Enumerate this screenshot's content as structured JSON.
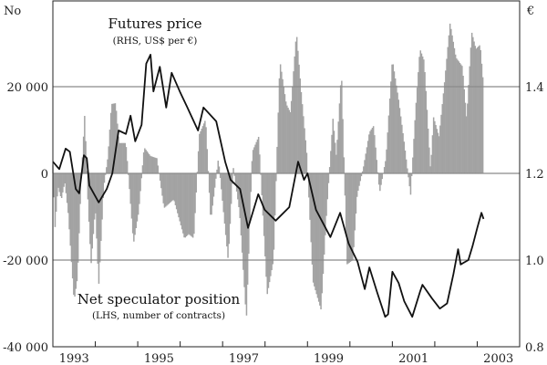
{
  "chart_data": {
    "type": "bar+line",
    "left_axis": {
      "unit_label": "No",
      "ylim": [
        -40000,
        40000
      ],
      "ticks": [
        20000,
        0,
        -20000,
        -40000
      ],
      "tick_labels": [
        "20 000",
        "0",
        "-20 000",
        "-40 000"
      ]
    },
    "right_axis": {
      "unit_label": "€",
      "ylim": [
        0.8,
        1.6
      ],
      "ticks": [
        1.4,
        1.2,
        1.0,
        0.8
      ],
      "tick_labels": [
        "1.4",
        "1.2",
        "1.0",
        "0.8"
      ]
    },
    "x_axis": {
      "xlim": [
        1993,
        2004
      ],
      "tick_labels": [
        "1993",
        "1995",
        "1997",
        "1999",
        "2001",
        "2003"
      ],
      "tick_label_years": [
        1993,
        1995,
        1997,
        1999,
        2001,
        2003
      ]
    },
    "grid": true,
    "series": [
      {
        "name": "Net speculator position",
        "sub": "(LHS, number of contracts)",
        "axis": "left",
        "kind": "bar",
        "color": "#a3a3a3",
        "points": [
          [
            1993.0,
            2000
          ],
          [
            1993.05,
            -12600
          ],
          [
            1993.12,
            -3000
          ],
          [
            1993.2,
            -6000
          ],
          [
            1993.28,
            -2000
          ],
          [
            1993.36,
            -9000
          ],
          [
            1993.5,
            -29500
          ],
          [
            1993.58,
            -24000
          ],
          [
            1993.66,
            -3000
          ],
          [
            1993.75,
            13700
          ],
          [
            1993.82,
            -5000
          ],
          [
            1993.9,
            -21000
          ],
          [
            1994.0,
            -8000
          ],
          [
            1994.08,
            -26000
          ],
          [
            1994.2,
            -3000
          ],
          [
            1994.3,
            4000
          ],
          [
            1994.38,
            16000
          ],
          [
            1994.48,
            16200
          ],
          [
            1994.56,
            7000
          ],
          [
            1994.72,
            7000
          ],
          [
            1994.8,
            -3000
          ],
          [
            1994.9,
            -16200
          ],
          [
            1995.02,
            -9000
          ],
          [
            1995.15,
            6000
          ],
          [
            1995.3,
            4000
          ],
          [
            1995.45,
            3500
          ],
          [
            1995.62,
            -8000
          ],
          [
            1995.85,
            -6000
          ],
          [
            1996.1,
            -15000
          ],
          [
            1996.2,
            -14000
          ],
          [
            1996.32,
            -15000
          ],
          [
            1996.45,
            9000
          ],
          [
            1996.6,
            12500
          ],
          [
            1996.72,
            -11000
          ],
          [
            1996.9,
            3500
          ],
          [
            1997.13,
            -20000
          ],
          [
            1997.25,
            1500
          ],
          [
            1997.4,
            -9000
          ],
          [
            1997.56,
            -33700
          ],
          [
            1997.7,
            5000
          ],
          [
            1997.85,
            8500
          ],
          [
            1998.05,
            -28000
          ],
          [
            1998.2,
            -20000
          ],
          [
            1998.35,
            26000
          ],
          [
            1998.5,
            16000
          ],
          [
            1998.6,
            14000
          ],
          [
            1998.74,
            32600
          ],
          [
            1998.85,
            19000
          ],
          [
            1998.98,
            5000
          ],
          [
            1999.13,
            -25000
          ],
          [
            1999.32,
            -31500
          ],
          [
            1999.45,
            -9000
          ],
          [
            1999.6,
            12600
          ],
          [
            1999.68,
            4000
          ],
          [
            1999.8,
            23500
          ],
          [
            1999.93,
            -21000
          ],
          [
            2000.07,
            -20000
          ],
          [
            2000.17,
            -5000
          ],
          [
            2000.32,
            1500
          ],
          [
            2000.46,
            9500
          ],
          [
            2000.56,
            11000
          ],
          [
            2000.7,
            -4500
          ],
          [
            2000.85,
            3500
          ],
          [
            2001.0,
            26300
          ],
          [
            2001.15,
            16800
          ],
          [
            2001.28,
            7000
          ],
          [
            2001.43,
            -5000
          ],
          [
            2001.55,
            15000
          ],
          [
            2001.65,
            28700
          ],
          [
            2001.75,
            26000
          ],
          [
            2001.9,
            700
          ],
          [
            2001.97,
            13000
          ],
          [
            2002.1,
            8500
          ],
          [
            2002.22,
            20000
          ],
          [
            2002.36,
            34700
          ],
          [
            2002.5,
            26700
          ],
          [
            2002.65,
            24700
          ],
          [
            2002.75,
            12600
          ],
          [
            2002.87,
            32600
          ],
          [
            2002.97,
            28700
          ],
          [
            2003.07,
            29700
          ],
          [
            2003.15,
            20000
          ]
        ]
      },
      {
        "name": "Futures price",
        "sub": "(RHS, US$ per €)",
        "axis": "right",
        "kind": "line",
        "color": "#111111",
        "points": [
          [
            1993.0,
            1.227
          ],
          [
            1993.15,
            1.21
          ],
          [
            1993.3,
            1.257
          ],
          [
            1993.4,
            1.25
          ],
          [
            1993.54,
            1.164
          ],
          [
            1993.62,
            1.154
          ],
          [
            1993.73,
            1.242
          ],
          [
            1993.8,
            1.235
          ],
          [
            1993.86,
            1.172
          ],
          [
            1994.08,
            1.133
          ],
          [
            1994.27,
            1.164
          ],
          [
            1994.4,
            1.2
          ],
          [
            1994.55,
            1.299
          ],
          [
            1994.72,
            1.291
          ],
          [
            1994.83,
            1.333
          ],
          [
            1994.94,
            1.274
          ],
          [
            1995.09,
            1.312
          ],
          [
            1995.2,
            1.453
          ],
          [
            1995.3,
            1.474
          ],
          [
            1995.37,
            1.389
          ],
          [
            1995.52,
            1.446
          ],
          [
            1995.67,
            1.352
          ],
          [
            1995.8,
            1.432
          ],
          [
            1995.99,
            1.389
          ],
          [
            1996.16,
            1.354
          ],
          [
            1996.42,
            1.299
          ],
          [
            1996.55,
            1.352
          ],
          [
            1996.85,
            1.32
          ],
          [
            1997.06,
            1.227
          ],
          [
            1997.19,
            1.185
          ],
          [
            1997.41,
            1.164
          ],
          [
            1997.6,
            1.074
          ],
          [
            1997.84,
            1.152
          ],
          [
            1997.99,
            1.116
          ],
          [
            1998.25,
            1.091
          ],
          [
            1998.57,
            1.122
          ],
          [
            1998.78,
            1.227
          ],
          [
            1998.92,
            1.185
          ],
          [
            1999.0,
            1.2
          ],
          [
            1999.2,
            1.116
          ],
          [
            1999.54,
            1.053
          ],
          [
            1999.77,
            1.109
          ],
          [
            1999.97,
            1.038
          ],
          [
            2000.18,
            0.996
          ],
          [
            2000.35,
            0.933
          ],
          [
            2000.46,
            0.983
          ],
          [
            2000.64,
            0.926
          ],
          [
            2000.83,
            0.869
          ],
          [
            2000.9,
            0.875
          ],
          [
            2001.0,
            0.973
          ],
          [
            2001.15,
            0.947
          ],
          [
            2001.28,
            0.905
          ],
          [
            2001.47,
            0.869
          ],
          [
            2001.65,
            0.926
          ],
          [
            2001.71,
            0.943
          ],
          [
            2001.93,
            0.912
          ],
          [
            2002.12,
            0.888
          ],
          [
            2002.29,
            0.9
          ],
          [
            2002.44,
            0.968
          ],
          [
            2002.55,
            1.025
          ],
          [
            2002.61,
            0.99
          ],
          [
            2002.79,
            1.0
          ],
          [
            2002.89,
            1.032
          ],
          [
            2003.0,
            1.074
          ],
          [
            2003.1,
            1.109
          ],
          [
            2003.15,
            1.095
          ]
        ]
      }
    ],
    "annotations": {
      "price_title": "Futures price",
      "price_sub": "(RHS, US$ per €)",
      "position_title": "Net speculator position",
      "position_sub": "(LHS, number of contracts)"
    }
  }
}
